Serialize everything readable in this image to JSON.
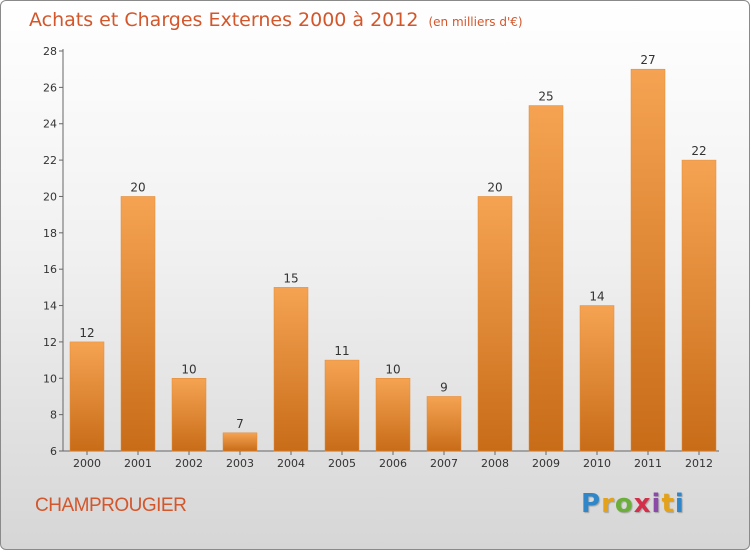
{
  "title": "Achats et Charges Externes 2000 à 2012",
  "title_unit": "(en milliers d'€)",
  "city": "CHAMPROUGIER",
  "brand": {
    "letters": [
      {
        "char": "P",
        "color": "#2f86c8"
      },
      {
        "char": "r",
        "color": "#e3a21a"
      },
      {
        "char": "o",
        "color": "#6cae3c"
      },
      {
        "char": "x",
        "color": "#d42f4a"
      },
      {
        "char": "i",
        "color": "#8b4aa7"
      },
      {
        "char": "t",
        "color": "#e3a21a"
      },
      {
        "char": "i",
        "color": "#2f86c8"
      }
    ]
  },
  "colors": {
    "bar_light": "#f5a352",
    "bar_dark": "#c86c18",
    "text": "#d4562b"
  },
  "chart_data": {
    "type": "bar",
    "title": "Achats et Charges Externes 2000 à 2012",
    "xlabel": "",
    "ylabel": "",
    "categories": [
      "2000",
      "2001",
      "2002",
      "2003",
      "2004",
      "2005",
      "2006",
      "2007",
      "2008",
      "2009",
      "2010",
      "2011",
      "2012"
    ],
    "values": [
      12,
      20,
      10,
      7,
      15,
      11,
      10,
      9,
      20,
      25,
      14,
      27,
      22
    ],
    "ylim": [
      6,
      28
    ],
    "yticks": [
      6,
      8,
      10,
      12,
      14,
      16,
      18,
      20,
      22,
      24,
      26,
      28
    ],
    "grid": false,
    "legend": "none"
  }
}
